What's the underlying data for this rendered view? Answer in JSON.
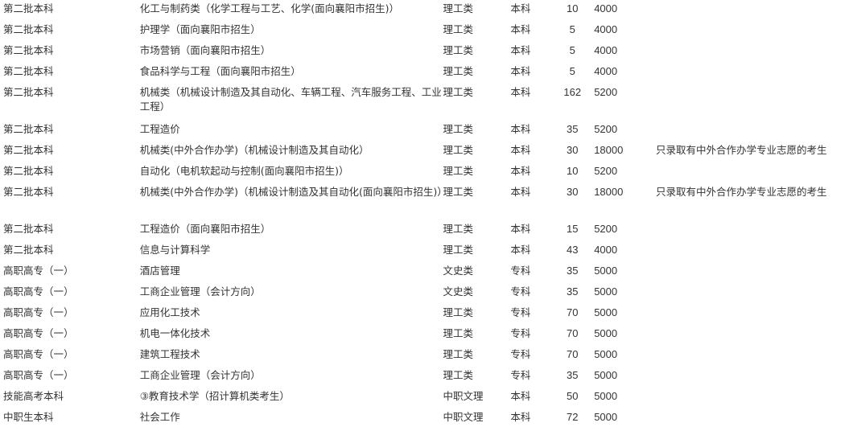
{
  "rows": [
    {
      "batch": "第二批本科",
      "major": "化工与制药类（化学工程与工艺、化学(面向襄阳市招生)）",
      "category": "理工类",
      "level": "本科",
      "quota": "10",
      "fee": "4000",
      "note": ""
    },
    {
      "batch": "第二批本科",
      "major": "护理学（面向襄阳市招生）",
      "category": "理工类",
      "level": "本科",
      "quota": "5",
      "fee": "4000",
      "note": ""
    },
    {
      "batch": "第二批本科",
      "major": "市场营销（面向襄阳市招生）",
      "category": "理工类",
      "level": "本科",
      "quota": "5",
      "fee": "4000",
      "note": ""
    },
    {
      "batch": "第二批本科",
      "major": "食品科学与工程（面向襄阳市招生）",
      "category": "理工类",
      "level": "本科",
      "quota": "5",
      "fee": "4000",
      "note": ""
    },
    {
      "batch": "第二批本科",
      "major": "机械类（机械设计制造及其自动化、车辆工程、汽车服务工程、工业工程）",
      "category": "理工类",
      "level": "本科",
      "quota": "162",
      "fee": "5200",
      "note": "",
      "wrap": true
    },
    {
      "batch": "第二批本科",
      "major": "工程造价",
      "category": "理工类",
      "level": "本科",
      "quota": "35",
      "fee": "5200",
      "note": ""
    },
    {
      "batch": "第二批本科",
      "major": "机械类(中外合作办学)（机械设计制造及其自动化）",
      "category": "理工类",
      "level": "本科",
      "quota": "30",
      "fee": "18000",
      "note": "只录取有中外合作办学专业志愿的考生"
    },
    {
      "batch": "第二批本科",
      "major": "自动化（电机软起动与控制(面向襄阳市招生)）",
      "category": "理工类",
      "level": "本科",
      "quota": "10",
      "fee": "5200",
      "note": ""
    },
    {
      "batch": "第二批本科",
      "major": "机械类(中外合作办学)（机械设计制造及其自动化(面向襄阳市招生)）",
      "category": "理工类",
      "level": "本科",
      "quota": "30",
      "fee": "18000",
      "note": "只录取有中外合作办学专业志愿的考生",
      "wrap": true
    },
    {
      "batch": "第二批本科",
      "major": "工程造价（面向襄阳市招生）",
      "category": "理工类",
      "level": "本科",
      "quota": "15",
      "fee": "5200",
      "note": ""
    },
    {
      "batch": "第二批本科",
      "major": "信息与计算科学",
      "category": "理工类",
      "level": "本科",
      "quota": "43",
      "fee": "4000",
      "note": ""
    },
    {
      "batch": "高职高专（一）",
      "major": "酒店管理",
      "category": "文史类",
      "level": "专科",
      "quota": "35",
      "fee": "5000",
      "note": ""
    },
    {
      "batch": "高职高专（一）",
      "major": "工商企业管理（会计方向）",
      "category": "文史类",
      "level": "专科",
      "quota": "35",
      "fee": "5000",
      "note": ""
    },
    {
      "batch": "高职高专（一）",
      "major": "应用化工技术",
      "category": "理工类",
      "level": "专科",
      "quota": "70",
      "fee": "5000",
      "note": ""
    },
    {
      "batch": "高职高专（一）",
      "major": "机电一体化技术",
      "category": "理工类",
      "level": "专科",
      "quota": "70",
      "fee": "5000",
      "note": ""
    },
    {
      "batch": "高职高专（一）",
      "major": "建筑工程技术",
      "category": "理工类",
      "level": "专科",
      "quota": "70",
      "fee": "5000",
      "note": ""
    },
    {
      "batch": "高职高专（一）",
      "major": "工商企业管理（会计方向）",
      "category": "理工类",
      "level": "专科",
      "quota": "35",
      "fee": "5000",
      "note": ""
    },
    {
      "batch": "技能高考本科",
      "major": "③教育技术学（招计算机类考生）",
      "category": "中职文理",
      "level": "本科",
      "quota": "50",
      "fee": "5000",
      "note": ""
    },
    {
      "batch": "中职生本科",
      "major": "社会工作",
      "category": "中职文理",
      "level": "本科",
      "quota": "72",
      "fee": "5000",
      "note": ""
    }
  ]
}
